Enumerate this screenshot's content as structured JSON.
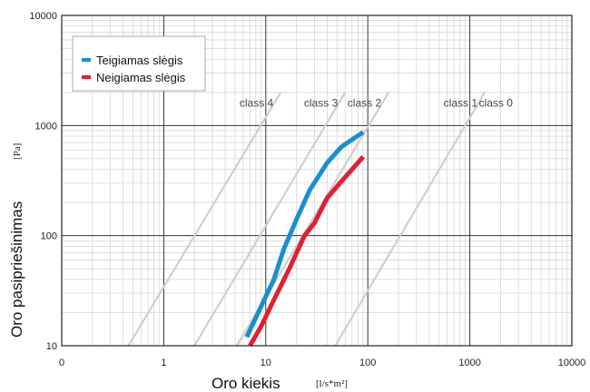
{
  "chart_data": {
    "type": "line",
    "xscale": "log",
    "yscale": "log",
    "xlim": [
      0.1,
      10000
    ],
    "ylim": [
      10,
      10000
    ],
    "x_ticks": [
      {
        "value": 0.1,
        "label": "0"
      },
      {
        "value": 1,
        "label": "1"
      },
      {
        "value": 10,
        "label": "10"
      },
      {
        "value": 100,
        "label": "100"
      },
      {
        "value": 1000,
        "label": "1000"
      },
      {
        "value": 10000,
        "label": "10000"
      }
    ],
    "y_ticks": [
      {
        "value": 10,
        "label": "10"
      },
      {
        "value": 100,
        "label": "100"
      },
      {
        "value": 1000,
        "label": "1000"
      },
      {
        "value": 10000,
        "label": "10000"
      }
    ],
    "xlabel": "Oro kiekis",
    "xunit": "[l/s*m²]",
    "ylabel": "Oro pasipriešinimas",
    "yunit": "[Pa]",
    "grid": true,
    "legend_position": "top-left",
    "series": [
      {
        "name": "Teigiamas slėgis",
        "color": "#1a8fcf",
        "points": [
          [
            6.5,
            12
          ],
          [
            8,
            18
          ],
          [
            10,
            28
          ],
          [
            12,
            40
          ],
          [
            15,
            75
          ],
          [
            20,
            140
          ],
          [
            27,
            260
          ],
          [
            40,
            460
          ],
          [
            55,
            640
          ],
          [
            90,
            870
          ]
        ]
      },
      {
        "name": "Neigiamas slėgis",
        "color": "#e02030",
        "points": [
          [
            7,
            10
          ],
          [
            9,
            15
          ],
          [
            12,
            26
          ],
          [
            17,
            50
          ],
          [
            24,
            100
          ],
          [
            30,
            130
          ],
          [
            40,
            220
          ],
          [
            55,
            310
          ],
          [
            90,
            520
          ]
        ]
      }
    ],
    "class_lines": {
      "color": "#cfcfcf",
      "lines": [
        {
          "label": "class 4",
          "points": [
            [
              0.45,
              10
            ],
            [
              14,
              2000
            ]
          ]
        },
        {
          "label": "class 3",
          "points": [
            [
              2,
              10
            ],
            [
              60,
              2000
            ]
          ]
        },
        {
          "label": "class 2",
          "points": [
            [
              5.2,
              10
            ],
            [
              160,
              2000
            ]
          ]
        },
        {
          "label": "class 1",
          "points": [
            [
              48,
              10
            ],
            [
              1400,
              2000
            ]
          ]
        },
        {
          "label": "class 0",
          "labelOnly": true,
          "labelPoint": [
            1800,
            1600
          ]
        }
      ]
    }
  }
}
